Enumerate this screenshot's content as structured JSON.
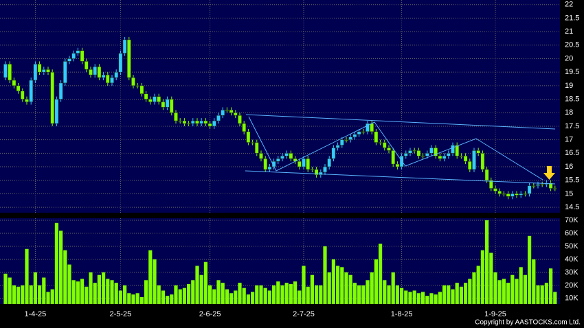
{
  "chart_data": {
    "type": "candlestick",
    "copyright": "Copyright by AASTOCKS.com Ltd.",
    "categories": [
      null,
      null,
      null,
      null,
      null,
      null,
      null,
      "1-4-25",
      null,
      null,
      null,
      null,
      null,
      null,
      null,
      null,
      null,
      null,
      null,
      null,
      null,
      null,
      null,
      null,
      null,
      null,
      null,
      "2-5-25",
      null,
      null,
      null,
      null,
      null,
      null,
      null,
      null,
      null,
      null,
      null,
      null,
      null,
      null,
      null,
      null,
      null,
      null,
      null,
      null,
      "2-6-25",
      null,
      null,
      null,
      null,
      null,
      null,
      null,
      null,
      null,
      null,
      null,
      null,
      null,
      null,
      null,
      null,
      null,
      null,
      null,
      null,
      null,
      "2-7-25",
      null,
      null,
      null,
      null,
      null,
      null,
      null,
      null,
      null,
      null,
      null,
      null,
      null,
      null,
      null,
      null,
      null,
      null,
      null,
      null,
      null,
      null,
      "1-8-25",
      null,
      null,
      null,
      null,
      null,
      null,
      null,
      null,
      null,
      null,
      null,
      null,
      null,
      null,
      null,
      null,
      null,
      null,
      null,
      null,
      null,
      "1-9-25",
      null,
      null,
      null,
      null,
      null,
      null,
      null,
      null,
      null,
      null,
      null,
      null,
      null,
      null
    ],
    "open": [
      19.3,
      19.8,
      19.2,
      19.0,
      18.8,
      18.5,
      18.4,
      19.2,
      19.8,
      19.5,
      19.6,
      19.5,
      17.6,
      18.5,
      19.1,
      19.9,
      20.0,
      20.2,
      20.3,
      19.9,
      19.6,
      19.4,
      19.7,
      19.3,
      19.4,
      19.1,
      19.3,
      19.5,
      20.2,
      20.7,
      19.3,
      19.0,
      19.0,
      18.7,
      18.5,
      18.4,
      18.6,
      18.4,
      18.2,
      18.5,
      18.0,
      17.7,
      17.7,
      17.6,
      17.6,
      17.7,
      17.6,
      17.7,
      17.6,
      17.5,
      17.7,
      17.9,
      18.1,
      18.1,
      18.0,
      17.9,
      17.6,
      17.3,
      16.9,
      16.9,
      16.5,
      16.3,
      15.9,
      16.0,
      16.2,
      16.3,
      16.4,
      16.5,
      16.3,
      16.2,
      16.0,
      16.3,
      15.9,
      15.9,
      15.7,
      15.8,
      16.0,
      16.3,
      16.7,
      16.8,
      17.0,
      17.0,
      17.1,
      17.2,
      17.3,
      17.3,
      17.6,
      17.3,
      16.9,
      16.9,
      16.7,
      16.6,
      16.1,
      16.0,
      16.4,
      16.5,
      16.6,
      16.6,
      16.4,
      16.4,
      16.5,
      16.7,
      16.4,
      16.3,
      16.4,
      16.5,
      16.8,
      16.4,
      16.4,
      16.2,
      15.9,
      16.6,
      16.5,
      15.9,
      15.5,
      15.2,
      15.1,
      15.0,
      15.0,
      14.9,
      15.0,
      14.95,
      15.0,
      15.0,
      15.3,
      15.3,
      15.35,
      15.35,
      15.4,
      15.2
    ],
    "high": [
      19.9,
      19.9,
      19.3,
      19.1,
      18.9,
      18.6,
      19.3,
      19.9,
      19.9,
      19.7,
      19.7,
      19.6,
      18.6,
      19.2,
      20.0,
      20.1,
      20.3,
      20.4,
      20.4,
      20.0,
      19.7,
      19.8,
      19.8,
      19.5,
      19.5,
      19.4,
      19.6,
      20.3,
      20.8,
      20.8,
      19.4,
      19.1,
      19.1,
      18.8,
      18.6,
      18.7,
      18.7,
      18.5,
      18.6,
      18.6,
      18.1,
      17.8,
      17.8,
      17.7,
      17.8,
      17.8,
      17.8,
      17.8,
      17.7,
      17.8,
      18.0,
      18.2,
      18.2,
      18.2,
      18.1,
      18.0,
      17.7,
      17.4,
      17.0,
      17.0,
      16.6,
      16.4,
      16.1,
      16.3,
      16.4,
      16.5,
      16.6,
      16.6,
      16.4,
      16.3,
      16.4,
      16.4,
      16.0,
      16.0,
      15.9,
      16.1,
      16.4,
      16.8,
      16.9,
      17.1,
      17.1,
      17.2,
      17.3,
      17.4,
      17.4,
      17.7,
      17.7,
      17.4,
      17.0,
      17.0,
      16.8,
      16.7,
      16.2,
      16.5,
      16.6,
      16.7,
      16.7,
      16.7,
      16.5,
      16.6,
      16.8,
      16.8,
      16.5,
      16.5,
      16.6,
      16.9,
      16.9,
      16.5,
      16.5,
      16.3,
      16.7,
      16.7,
      16.6,
      16.0,
      15.6,
      15.3,
      15.2,
      15.1,
      15.1,
      15.1,
      15.1,
      15.1,
      15.1,
      15.4,
      15.4,
      15.45,
      15.45,
      15.5,
      15.5,
      15.3
    ],
    "low": [
      19.2,
      19.1,
      18.9,
      18.7,
      18.4,
      18.3,
      18.3,
      19.1,
      19.4,
      19.4,
      19.4,
      17.5,
      17.5,
      18.4,
      19.0,
      19.8,
      19.9,
      20.1,
      19.8,
      19.5,
      19.3,
      19.3,
      19.2,
      19.2,
      19.0,
      19.0,
      19.2,
      19.4,
      20.1,
      19.2,
      18.9,
      18.9,
      18.6,
      18.4,
      18.3,
      18.3,
      18.3,
      18.1,
      18.1,
      17.9,
      17.6,
      17.6,
      17.5,
      17.5,
      17.5,
      17.5,
      17.5,
      17.5,
      17.4,
      17.4,
      17.6,
      17.8,
      18.0,
      17.9,
      17.8,
      17.5,
      17.2,
      16.8,
      16.8,
      16.4,
      16.2,
      15.8,
      15.8,
      15.9,
      16.1,
      16.2,
      16.3,
      16.2,
      16.1,
      15.9,
      15.9,
      15.8,
      15.8,
      15.6,
      15.6,
      15.7,
      15.9,
      16.2,
      16.6,
      16.7,
      16.9,
      16.9,
      17.0,
      17.1,
      17.2,
      17.2,
      17.2,
      16.8,
      16.8,
      16.6,
      16.5,
      16.0,
      15.9,
      15.9,
      16.3,
      16.4,
      16.5,
      16.3,
      16.3,
      16.3,
      16.4,
      16.3,
      16.2,
      16.2,
      16.3,
      16.4,
      16.3,
      16.3,
      16.1,
      15.8,
      15.8,
      16.4,
      15.8,
      15.4,
      15.1,
      15.0,
      14.9,
      14.9,
      14.8,
      14.8,
      14.85,
      14.85,
      14.9,
      14.9,
      15.2,
      15.2,
      15.25,
      15.25,
      15.1,
      15.1
    ],
    "close": [
      19.8,
      19.2,
      19.0,
      18.8,
      18.5,
      18.4,
      19.2,
      19.8,
      19.5,
      19.6,
      19.5,
      17.6,
      18.5,
      19.1,
      19.9,
      20.0,
      20.2,
      20.3,
      19.9,
      19.6,
      19.4,
      19.7,
      19.3,
      19.4,
      19.1,
      19.3,
      19.5,
      20.2,
      20.7,
      19.3,
      19.0,
      19.0,
      18.7,
      18.5,
      18.4,
      18.6,
      18.4,
      18.2,
      18.5,
      18.0,
      17.7,
      17.7,
      17.6,
      17.6,
      17.7,
      17.6,
      17.7,
      17.6,
      17.5,
      17.7,
      17.9,
      18.1,
      18.1,
      18.0,
      17.9,
      17.6,
      17.3,
      16.9,
      16.9,
      16.5,
      16.3,
      15.9,
      16.0,
      16.2,
      16.3,
      16.4,
      16.5,
      16.3,
      16.2,
      16.0,
      16.3,
      15.9,
      15.9,
      15.7,
      15.8,
      16.0,
      16.3,
      16.7,
      16.8,
      17.0,
      17.0,
      17.1,
      17.2,
      17.3,
      17.3,
      17.6,
      17.3,
      16.9,
      16.9,
      16.7,
      16.6,
      16.1,
      16.0,
      16.4,
      16.5,
      16.6,
      16.6,
      16.4,
      16.4,
      16.5,
      16.7,
      16.4,
      16.3,
      16.4,
      16.5,
      16.8,
      16.4,
      16.4,
      16.2,
      15.9,
      16.6,
      16.5,
      15.9,
      15.5,
      15.2,
      15.1,
      15.0,
      15.0,
      14.9,
      15.0,
      14.95,
      15.0,
      15.0,
      15.3,
      15.3,
      15.35,
      15.35,
      15.4,
      15.2,
      15.2
    ],
    "volume": [
      29000,
      26000,
      20000,
      19000,
      20000,
      48000,
      20000,
      30000,
      20000,
      26000,
      15000,
      17000,
      68000,
      62000,
      47000,
      36000,
      24000,
      23000,
      25000,
      19000,
      30000,
      22000,
      28000,
      30000,
      25000,
      24000,
      22000,
      16000,
      20000,
      14000,
      13000,
      14000,
      11000,
      24000,
      47000,
      40000,
      20000,
      16000,
      12000,
      13000,
      20000,
      17000,
      18000,
      21000,
      24000,
      35000,
      28000,
      38000,
      20000,
      17000,
      24000,
      22000,
      17000,
      14000,
      16000,
      22000,
      18000,
      13000,
      15000,
      20000,
      20000,
      18000,
      16000,
      20000,
      23000,
      20000,
      22000,
      21000,
      23000,
      16000,
      35000,
      19000,
      28000,
      20000,
      20000,
      50000,
      30000,
      40000,
      35000,
      34000,
      30000,
      28000,
      22000,
      20000,
      20000,
      24000,
      30000,
      40000,
      52000,
      24000,
      20000,
      30000,
      20000,
      18000,
      16000,
      15000,
      16000,
      14000,
      15000,
      12000,
      14000,
      13000,
      15000,
      20000,
      20000,
      17000,
      22000,
      19000,
      22000,
      25000,
      30000,
      35000,
      47000,
      70000,
      45000,
      30000,
      24000,
      25000,
      22000,
      28000,
      25000,
      34000,
      28000,
      58000,
      40000,
      20000,
      20000,
      22000,
      33000,
      15000
    ],
    "up_color": "#33ccff",
    "down_color": "#80ff00",
    "volume_color": "#80ff00",
    "ylim": [
      14.3,
      22.17
    ],
    "yticks": [
      14.5,
      15,
      15.5,
      16,
      16.5,
      17,
      17.5,
      18,
      18.5,
      19,
      19.5,
      20,
      20.5,
      21,
      21.5,
      22
    ],
    "y2lim": [
      5700,
      71600
    ],
    "y2ticks": [
      {
        "value": 10000,
        "label": "10K"
      },
      {
        "value": 20000,
        "label": "20K"
      },
      {
        "value": 30000,
        "label": "30K"
      },
      {
        "value": 40000,
        "label": "40K"
      },
      {
        "value": 50000,
        "label": "50K"
      },
      {
        "value": 60000,
        "label": "60K"
      },
      {
        "value": 70000,
        "label": "70K"
      }
    ],
    "grid": true
  }
}
